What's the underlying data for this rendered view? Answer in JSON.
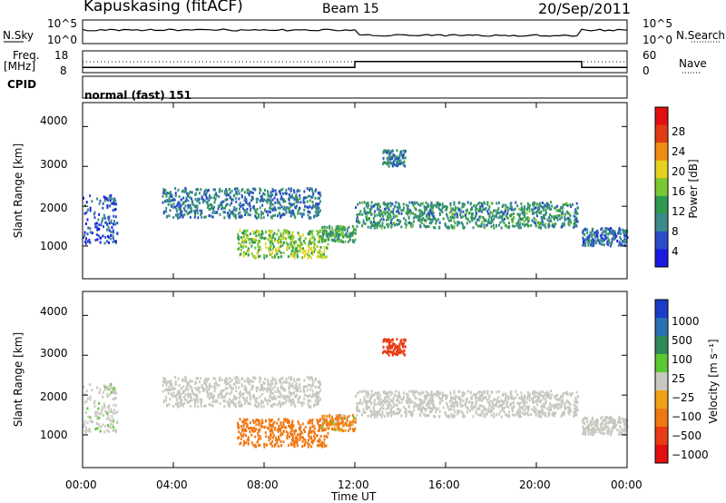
{
  "header": {
    "station": "Kapuskasing (fitACF)",
    "beam": "Beam 15",
    "date": "20/Sep/2011"
  },
  "top_panels": {
    "nsky_label": "N.Sky",
    "nsky_ticks": [
      "10^5",
      "10^0"
    ],
    "nsearch_label": "N.Search",
    "nsearch_ticks": [
      "10^5",
      "10^0"
    ],
    "freq_label_1": "Freq.",
    "freq_label_2": "[MHz]",
    "freq_ticks": [
      "18",
      "8"
    ],
    "nave_label": "Nave",
    "nave_ticks": [
      "60",
      "0"
    ],
    "cpid_label": "CPID",
    "cpid_value": "normal (fast) 151"
  },
  "power_panel": {
    "ylabel": "Slant Range [km]",
    "yticks": [
      "4000",
      "3000",
      "2000",
      "1000"
    ],
    "colorbar_label": "Power [dB]",
    "colorbar_ticks": [
      "28",
      "24",
      "20",
      "16",
      "12",
      "8",
      "4"
    ],
    "colors": [
      "#1a1ae0",
      "#2a4ec8",
      "#3a8a8a",
      "#2f9a50",
      "#7ac832",
      "#e6d21e",
      "#f08c14",
      "#e03c14",
      "#e01010"
    ]
  },
  "velocity_panel": {
    "ylabel": "Slant Range [km]",
    "yticks": [
      "4000",
      "3000",
      "2000",
      "1000"
    ],
    "colorbar_label": "Velocity [m s⁻¹]",
    "colorbar_ticks": [
      "1000",
      "500",
      "100",
      "25",
      "−25",
      "−100",
      "−500",
      "−1000"
    ],
    "colors": [
      "#1a3cc8",
      "#2a70b4",
      "#2f8a5a",
      "#5ac832",
      "#c8c8c0",
      "#f0a014",
      "#f07814",
      "#e83c14",
      "#e01010"
    ]
  },
  "xaxis": {
    "label": "Time UT",
    "ticks": [
      "00:00",
      "04:00",
      "08:00",
      "12:00",
      "16:00",
      "20:00",
      "00:00"
    ]
  },
  "chart_data": {
    "type": "heatmap",
    "title": "Kapuskasing (fitACF)  Beam 15  20/Sep/2011",
    "xlabel": "Time UT",
    "ylabel": "Slant Range [km]",
    "xlim": [
      0,
      24
    ],
    "ylim": [
      180,
      4600
    ],
    "panels": [
      {
        "name": "Power",
        "units": "dB",
        "scale": [
          0,
          32
        ]
      },
      {
        "name": "Velocity",
        "units": "m s-1",
        "scale": [
          -1000,
          1000
        ]
      }
    ],
    "frequency": [
      {
        "start_h": 0,
        "end_h": 12,
        "value_mhz": 10.4
      },
      {
        "start_h": 12,
        "end_h": 22,
        "value_mhz": 13.1
      },
      {
        "start_h": 22,
        "end_h": 24,
        "value_mhz": 10.4
      }
    ],
    "scatter_bands": [
      {
        "start_h": 0.0,
        "end_h": 1.5,
        "range_km": [
          1050,
          2300
        ],
        "power_db": 6,
        "velocity": 10
      },
      {
        "start_h": 3.5,
        "end_h": 10.5,
        "range_km": [
          1700,
          2450
        ],
        "power_db": 9,
        "velocity": 0
      },
      {
        "start_h": 6.8,
        "end_h": 10.8,
        "range_km": [
          700,
          1400
        ],
        "power_db": 18,
        "velocity": -300
      },
      {
        "start_h": 10.5,
        "end_h": 12.0,
        "range_km": [
          1100,
          1500
        ],
        "power_db": 14,
        "velocity": -150
      },
      {
        "start_h": 12.0,
        "end_h": 21.8,
        "range_km": [
          1450,
          2100
        ],
        "power_db": 12,
        "velocity": 0
      },
      {
        "start_h": 13.2,
        "end_h": 14.2,
        "range_km": [
          3000,
          3400
        ],
        "power_db": 10,
        "velocity": -700
      },
      {
        "start_h": 22.0,
        "end_h": 24.0,
        "range_km": [
          1000,
          1450
        ],
        "power_db": 8,
        "velocity": 0
      }
    ]
  }
}
